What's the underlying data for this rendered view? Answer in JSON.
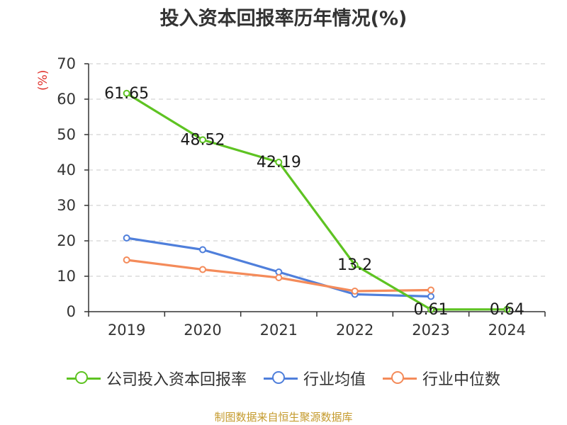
{
  "title": "投入资本回报率历年情况(%)",
  "source": "制图数据来自恒生聚源数据库",
  "colors": {
    "company": "#5ec322",
    "avg": "#4f7fdb",
    "median": "#f48b5a"
  },
  "chart_data": {
    "type": "line",
    "title": "投入资本回报率历年情况(%)",
    "ylabel": "(%)",
    "ylim": [
      0,
      70
    ],
    "yticks": [
      0,
      10,
      20,
      30,
      40,
      50,
      60,
      70
    ],
    "grid": true,
    "legend_position": "bottom",
    "categories": [
      "2019",
      "2020",
      "2021",
      "2022",
      "2023",
      "2024"
    ],
    "series": [
      {
        "name": "公司投入资本回报率",
        "color": "#5ec322",
        "values": [
          61.65,
          48.52,
          42.19,
          13.2,
          0.61,
          0.64
        ],
        "labels": [
          "61.65",
          "48.52",
          "42.19",
          "13.2",
          "0.61",
          "0.64"
        ]
      },
      {
        "name": "行业均值",
        "color": "#4f7fdb",
        "values": [
          20.8,
          17.5,
          11.2,
          4.9,
          4.3,
          null
        ]
      },
      {
        "name": "行业中位数",
        "color": "#f48b5a",
        "values": [
          14.6,
          11.9,
          9.6,
          5.8,
          6.1,
          null
        ]
      }
    ]
  }
}
